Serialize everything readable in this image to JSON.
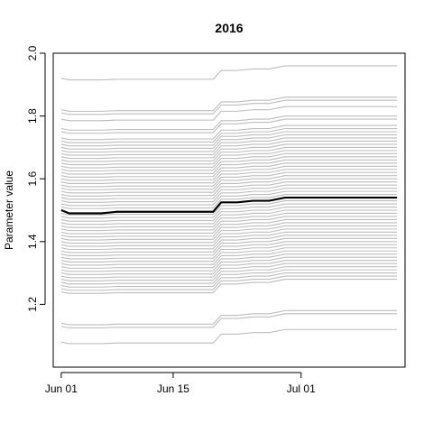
{
  "chart_data": {
    "type": "line",
    "title": "2016",
    "xlabel": "",
    "ylabel": "Parameter value",
    "x": [
      "2016-06-01",
      "2016-06-02",
      "2016-06-04",
      "2016-06-06",
      "2016-06-08",
      "2016-06-10",
      "2016-06-12",
      "2016-06-14",
      "2016-06-16",
      "2016-06-18",
      "2016-06-20",
      "2016-06-21",
      "2016-06-23",
      "2016-06-25",
      "2016-06-27",
      "2016-06-29",
      "2016-07-01",
      "2016-07-03",
      "2016-07-05",
      "2016-07-07",
      "2016-07-09",
      "2016-07-11",
      "2016-07-13"
    ],
    "xlim": [
      "2016-05-31",
      "2016-07-14"
    ],
    "xticks": [
      {
        "label": "Jun 01",
        "date": "2016-06-01"
      },
      {
        "label": "Jun 15",
        "date": "2016-06-15"
      },
      {
        "label": "Jul 01",
        "date": "2016-07-01"
      }
    ],
    "ylim": [
      1.0,
      2.0
    ],
    "yticks": [
      "1.2",
      "1.4",
      "1.6",
      "1.8",
      "2.0"
    ],
    "grid": false,
    "legend": "none",
    "base_step_pattern": [
      0,
      -0.005,
      -0.005,
      -0.005,
      -0.003,
      -0.003,
      -0.003,
      -0.003,
      -0.003,
      -0.003,
      -0.003,
      0.025,
      0.025,
      0.03,
      0.03,
      0.04,
      0.04,
      0.04,
      0.04,
      0.04,
      0.04,
      0.04,
      0.04
    ],
    "series_start_values": [
      1.92,
      1.82,
      1.81,
      1.79,
      1.76,
      1.75,
      1.73,
      1.72,
      1.71,
      1.7,
      1.69,
      1.68,
      1.67,
      1.66,
      1.65,
      1.64,
      1.63,
      1.62,
      1.61,
      1.6,
      1.59,
      1.58,
      1.57,
      1.56,
      1.55,
      1.54,
      1.53,
      1.52,
      1.51,
      1.49,
      1.48,
      1.47,
      1.46,
      1.45,
      1.44,
      1.43,
      1.42,
      1.41,
      1.4,
      1.39,
      1.38,
      1.37,
      1.36,
      1.35,
      1.34,
      1.33,
      1.32,
      1.31,
      1.3,
      1.29,
      1.28,
      1.27,
      1.26,
      1.25,
      1.24,
      1.14,
      1.13,
      1.08
    ],
    "highlight_series": {
      "values": [
        1.5,
        1.49,
        1.49,
        1.49,
        1.495,
        1.495,
        1.495,
        1.495,
        1.495,
        1.495,
        1.495,
        1.525,
        1.525,
        1.53,
        1.53,
        1.54,
        1.54,
        1.54,
        1.54,
        1.54,
        1.54,
        1.54,
        1.54
      ],
      "color": "#000000"
    },
    "background_color": "#bdbdbd"
  }
}
